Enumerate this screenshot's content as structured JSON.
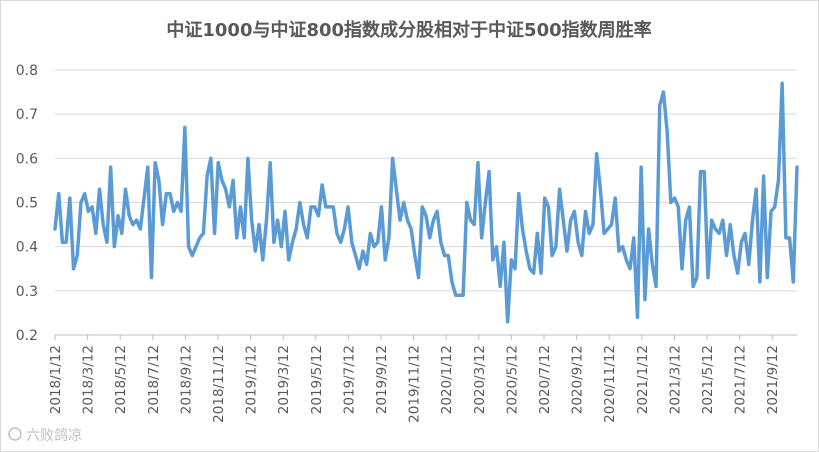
{
  "chart_data": {
    "type": "line",
    "title": "中证1000与中证800指数成分股相对于中证500指数周胜率",
    "xlabel": "",
    "ylabel": "",
    "ylim": [
      0.2,
      0.8
    ],
    "y_ticks": [
      "0.2",
      "0.3",
      "0.4",
      "0.5",
      "0.6",
      "0.7",
      "0.8"
    ],
    "x_tick_labels": [
      "2018/1/12",
      "2018/3/12",
      "2018/5/12",
      "2018/7/12",
      "2018/9/12",
      "2018/11/12",
      "2019/1/12",
      "2019/3/12",
      "2019/5/12",
      "2019/7/12",
      "2019/9/12",
      "2019/11/12",
      "2020/1/12",
      "2020/3/12",
      "2020/5/12",
      "2020/7/12",
      "2020/9/12",
      "2020/11/12",
      "2021/1/12",
      "2021/3/12",
      "2021/5/12",
      "2021/7/12",
      "2021/9/12"
    ],
    "grid": "horizontal",
    "color": "#5b9bd5",
    "series": [
      {
        "values": [
          0.44,
          0.52,
          0.41,
          0.41,
          0.51,
          0.35,
          0.38,
          0.5,
          0.52,
          0.48,
          0.49,
          0.43,
          0.53,
          0.45,
          0.41,
          0.58,
          0.4,
          0.47,
          0.43,
          0.53,
          0.47,
          0.45,
          0.46,
          0.44,
          0.51,
          0.58,
          0.33,
          0.59,
          0.55,
          0.45,
          0.52,
          0.52,
          0.48,
          0.5,
          0.48,
          0.67,
          0.4,
          0.38,
          0.4,
          0.42,
          0.43,
          0.56,
          0.6,
          0.43,
          0.59,
          0.55,
          0.53,
          0.49,
          0.55,
          0.42,
          0.49,
          0.42,
          0.6,
          0.46,
          0.39,
          0.45,
          0.37,
          0.46,
          0.59,
          0.41,
          0.46,
          0.4,
          0.48,
          0.37,
          0.41,
          0.44,
          0.5,
          0.45,
          0.42,
          0.49,
          0.49,
          0.47,
          0.54,
          0.49,
          0.49,
          0.49,
          0.43,
          0.41,
          0.44,
          0.49,
          0.41,
          0.38,
          0.35,
          0.39,
          0.36,
          0.43,
          0.4,
          0.41,
          0.49,
          0.37,
          0.42,
          0.6,
          0.53,
          0.46,
          0.5,
          0.46,
          0.44,
          0.38,
          0.33,
          0.49,
          0.47,
          0.42,
          0.46,
          0.48,
          0.41,
          0.38,
          0.38,
          0.32,
          0.29,
          0.29,
          0.29,
          0.5,
          0.46,
          0.45,
          0.59,
          0.42,
          0.5,
          0.57,
          0.37,
          0.4,
          0.31,
          0.41,
          0.23,
          0.37,
          0.35,
          0.52,
          0.44,
          0.39,
          0.35,
          0.34,
          0.43,
          0.34,
          0.51,
          0.49,
          0.38,
          0.4,
          0.53,
          0.46,
          0.39,
          0.46,
          0.48,
          0.41,
          0.38,
          0.48,
          0.43,
          0.45,
          0.61,
          0.53,
          0.43,
          0.44,
          0.45,
          0.51,
          0.39,
          0.4,
          0.37,
          0.35,
          0.42,
          0.24,
          0.58,
          0.28,
          0.44,
          0.36,
          0.31,
          0.72,
          0.75,
          0.66,
          0.5,
          0.51,
          0.49,
          0.35,
          0.46,
          0.49,
          0.31,
          0.33,
          0.57,
          0.57,
          0.33,
          0.46,
          0.44,
          0.43,
          0.46,
          0.38,
          0.45,
          0.38,
          0.34,
          0.41,
          0.43,
          0.36,
          0.46,
          0.53,
          0.32,
          0.56,
          0.33,
          0.48,
          0.49,
          0.55,
          0.77,
          0.42,
          0.42,
          0.32,
          0.58
        ]
      }
    ]
  },
  "watermark": {
    "text": "六败鸽凉"
  }
}
